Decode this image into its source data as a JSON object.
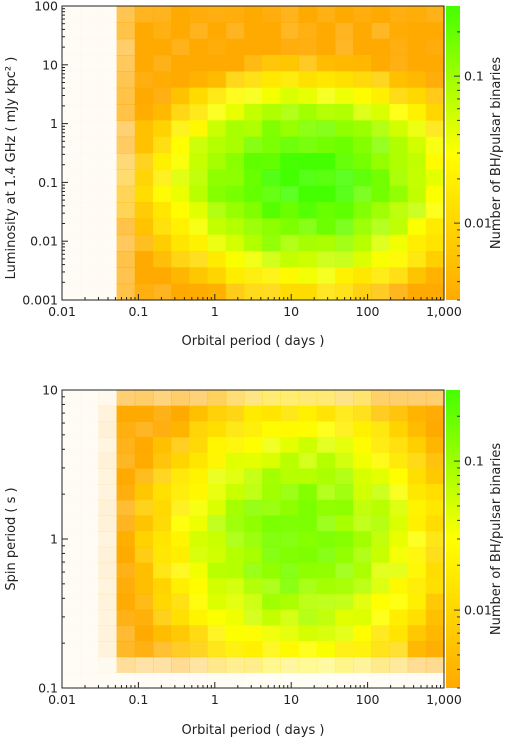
{
  "chart_data": [
    {
      "type": "heatmap",
      "title": "",
      "xlabel": "Orbital period ( days )",
      "ylabel": "Luminosity at 1.4 GHz ( mJy kpc² )",
      "xscale": "log",
      "yscale": "log",
      "xlim": [
        0.01,
        1000
      ],
      "ylim": [
        0.001,
        100
      ],
      "x_tick_labels": [
        "0.01",
        "0.1",
        "1",
        "10",
        "100",
        "1,000"
      ],
      "y_tick_labels": [
        "0.001",
        "0.01",
        "0.1",
        "1",
        "10",
        "100"
      ],
      "colorbar": {
        "label": "Number of BH/pulsar binaries",
        "scale": "log",
        "range": [
          0.003,
          0.3
        ],
        "tick_labels": [
          "0.01",
          "0.1"
        ],
        "colors": [
          "#ffaa00",
          "#ffff00",
          "#44ff00"
        ]
      },
      "grid": false,
      "peak": {
        "x": 15,
        "y": 0.1,
        "value": 0.3
      },
      "density_profile": {
        "x_center_log": 1.2,
        "x_width_log": 0.9,
        "x_edges_log": [
          -1.05,
          3.0
        ],
        "y_center_log": -1.0,
        "y_width_log": 0.8,
        "y_edges_log": [
          -2.9,
          1.95
        ]
      }
    },
    {
      "type": "heatmap",
      "title": "",
      "xlabel": "Orbital period ( days )",
      "ylabel": "Spin period ( s )",
      "xscale": "log",
      "yscale": "log",
      "xlim": [
        0.01,
        1000
      ],
      "ylim": [
        0.1,
        10
      ],
      "x_tick_labels": [
        "0.01",
        "0.1",
        "1",
        "10",
        "100",
        "1,000"
      ],
      "y_tick_labels": [
        "0.1",
        "1",
        "10"
      ],
      "colorbar": {
        "label": "Number of BH/pulsar binaries",
        "scale": "log",
        "range": [
          0.003,
          0.3
        ],
        "tick_labels": [
          "0.01",
          "0.1"
        ],
        "colors": [
          "#ffaa00",
          "#ffff00",
          "#44ff00"
        ]
      },
      "grid": false,
      "peak": {
        "x": 15,
        "y": 1.0,
        "value": 0.15
      },
      "density_profile": {
        "x_center_log": 1.1,
        "x_width_log": 0.9,
        "x_edges_log": [
          -1.15,
          3.0
        ],
        "y_center_log": 0.0,
        "y_width_log": 0.45,
        "y_edges_log": [
          -0.75,
          0.88
        ]
      }
    }
  ]
}
